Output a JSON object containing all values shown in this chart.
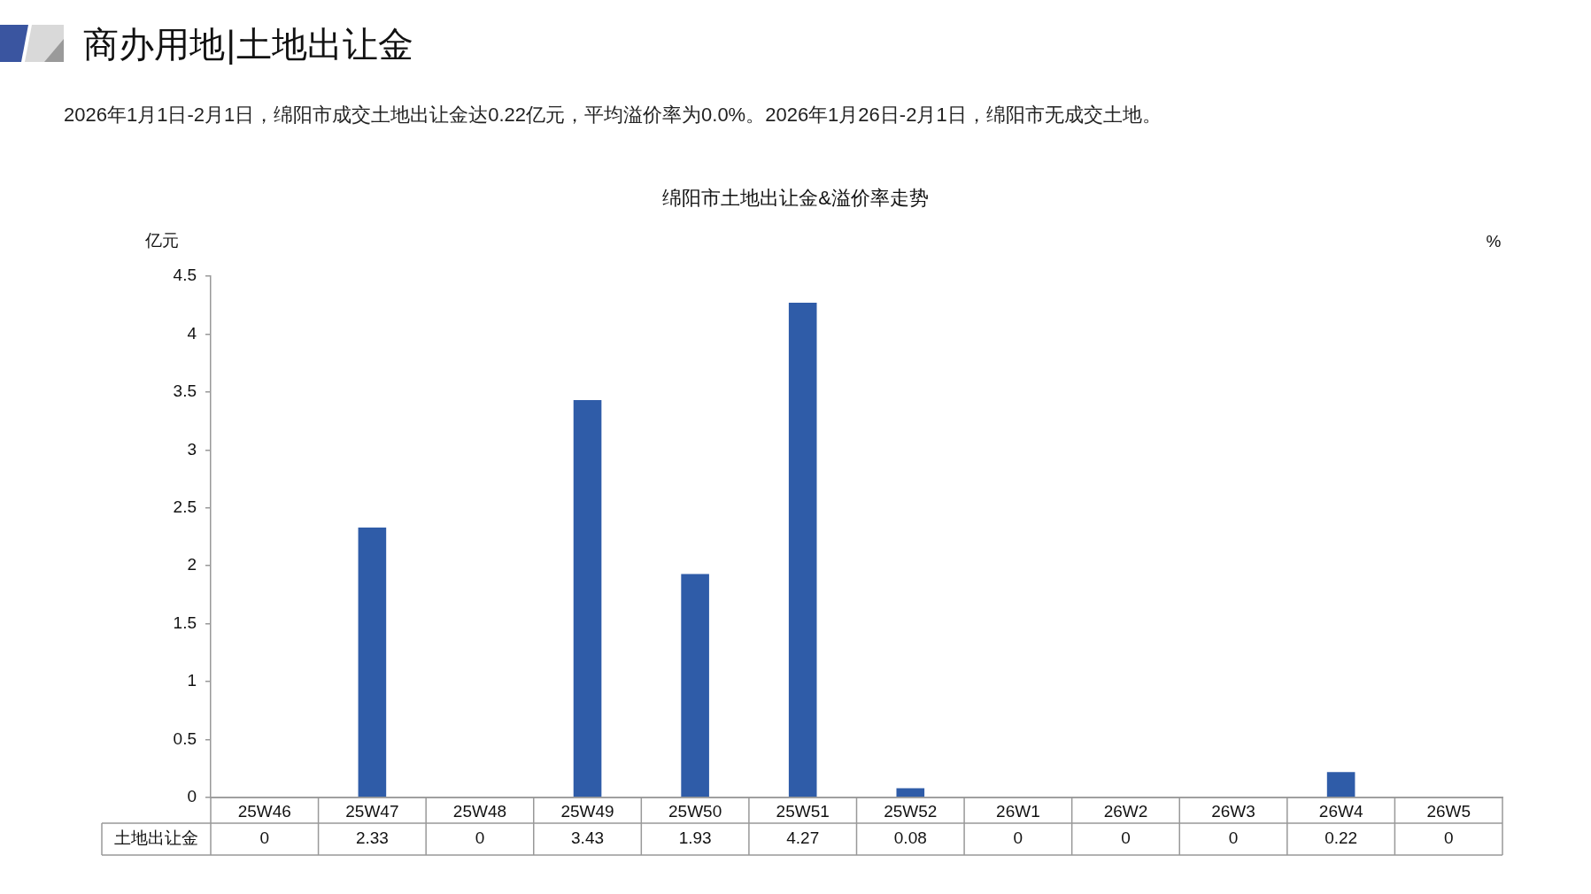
{
  "chart_data": {
    "type": "bar",
    "title": "商办用地|土地出让金",
    "subtitle": "2026年1月1日-2月1日，绵阳市成交土地出让金达0.22亿元，平均溢价率为0.0%。2026年1月26日-2月1日，绵阳市无成交土地。",
    "annotations": [
      "绵阳市土地出让金&溢价率走势"
    ],
    "ylabel": "亿元",
    "y2label": "%",
    "categories": [
      "25W46",
      "25W47",
      "25W48",
      "25W49",
      "25W50",
      "25W51",
      "25W52",
      "26W1",
      "26W2",
      "26W3",
      "26W4",
      "26W5"
    ],
    "series": [
      {
        "name": "土地出让金",
        "color": "#2f5ca8",
        "values": [
          0,
          2.33,
          0,
          3.43,
          1.93,
          4.27,
          0.08,
          0,
          0,
          0,
          0.22,
          0
        ]
      }
    ],
    "ylim": [
      0,
      4.5
    ],
    "yticks": [
      0,
      0.5,
      1,
      1.5,
      2,
      2.5,
      3,
      3.5,
      4,
      4.5
    ],
    "data_labels": true
  }
}
